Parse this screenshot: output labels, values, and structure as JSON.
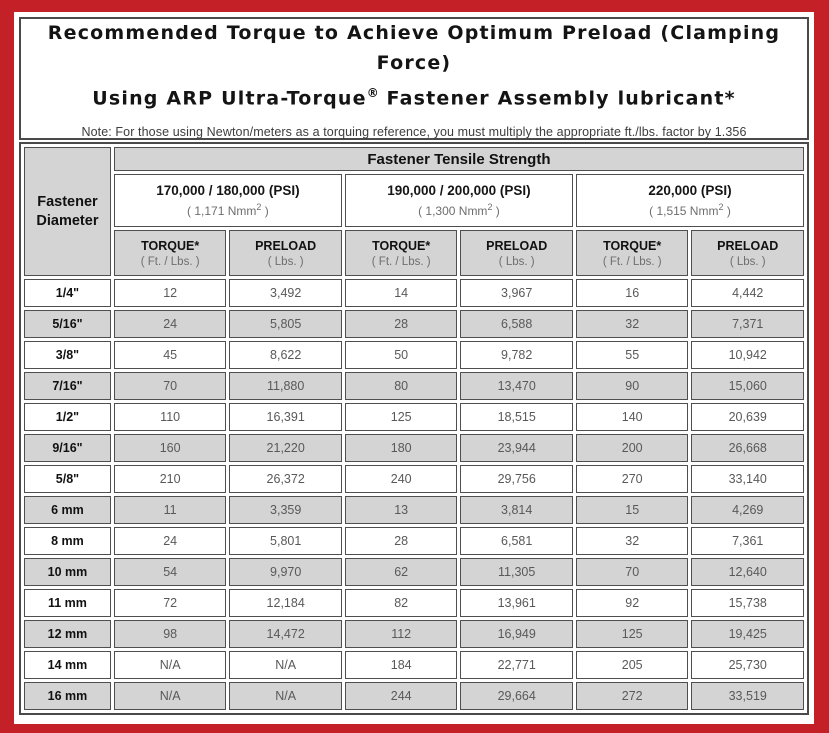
{
  "title": {
    "line1": "Recommended Torque to Achieve Optimum Preload (Clamping Force)",
    "line2_before": "Using ARP Ultra-Torque",
    "line2_sup": "®",
    "line2_after": " Fastener Assembly lubricant*",
    "note": "Note: For those using Newton/meters as a torquing reference, you must multiply the appropriate ft./lbs. factor by 1.356"
  },
  "table": {
    "tensile_header": "Fastener Tensile Strength",
    "diameter_header": "Fastener Diameter",
    "groups": [
      {
        "psi": "170,000 / 180,000 (PSI)",
        "nmm_prefix": "( 1,171 Nmm",
        "nmm_sup": "2",
        "nmm_suffix": " )"
      },
      {
        "psi": "190,000 / 200,000 (PSI)",
        "nmm_prefix": "( 1,300 Nmm",
        "nmm_sup": "2",
        "nmm_suffix": " )"
      },
      {
        "psi": "220,000 (PSI)",
        "nmm_prefix": "( 1,515 Nmm",
        "nmm_sup": "2",
        "nmm_suffix": " )"
      }
    ],
    "col_headers": {
      "torque_label": "TORQUE*",
      "torque_sub": "( Ft. / Lbs. )",
      "preload_label": "PRELOAD",
      "preload_sub": "( Lbs. )"
    },
    "rows": [
      {
        "diameter": "1/4\"",
        "values": [
          "12",
          "3,492",
          "14",
          "3,967",
          "16",
          "4,442"
        ]
      },
      {
        "diameter": "5/16\"",
        "values": [
          "24",
          "5,805",
          "28",
          "6,588",
          "32",
          "7,371"
        ]
      },
      {
        "diameter": "3/8\"",
        "values": [
          "45",
          "8,622",
          "50",
          "9,782",
          "55",
          "10,942"
        ]
      },
      {
        "diameter": "7/16\"",
        "values": [
          "70",
          "11,880",
          "80",
          "13,470",
          "90",
          "15,060"
        ]
      },
      {
        "diameter": "1/2\"",
        "values": [
          "110",
          "16,391",
          "125",
          "18,515",
          "140",
          "20,639"
        ]
      },
      {
        "diameter": "9/16\"",
        "values": [
          "160",
          "21,220",
          "180",
          "23,944",
          "200",
          "26,668"
        ]
      },
      {
        "diameter": "5/8\"",
        "values": [
          "210",
          "26,372",
          "240",
          "29,756",
          "270",
          "33,140"
        ]
      },
      {
        "diameter": "6 mm",
        "values": [
          "11",
          "3,359",
          "13",
          "3,814",
          "15",
          "4,269"
        ]
      },
      {
        "diameter": "8 mm",
        "values": [
          "24",
          "5,801",
          "28",
          "6,581",
          "32",
          "7,361"
        ]
      },
      {
        "diameter": "10 mm",
        "values": [
          "54",
          "9,970",
          "62",
          "11,305",
          "70",
          "12,640"
        ]
      },
      {
        "diameter": "11 mm",
        "values": [
          "72",
          "12,184",
          "82",
          "13,961",
          "92",
          "15,738"
        ]
      },
      {
        "diameter": "12 mm",
        "values": [
          "98",
          "14,472",
          "112",
          "16,949",
          "125",
          "19,425"
        ]
      },
      {
        "diameter": "14 mm",
        "values": [
          "N/A",
          "N/A",
          "184",
          "22,771",
          "205",
          "25,730"
        ]
      },
      {
        "diameter": "16 mm",
        "values": [
          "N/A",
          "N/A",
          "244",
          "29,664",
          "272",
          "33,519"
        ]
      }
    ]
  },
  "colors": {
    "frame_red": "#c32127",
    "header_gray": "#d4d4d4",
    "border_dark": "#4a4a4a",
    "data_text_gray": "#595959"
  }
}
